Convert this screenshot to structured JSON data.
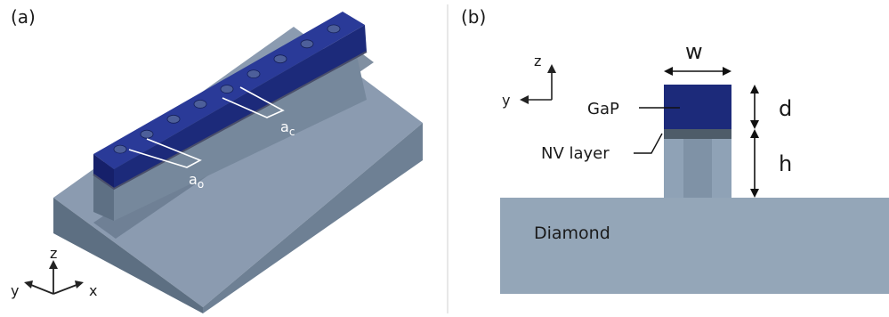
{
  "panel_a": {
    "label": "(a)",
    "hole_labels": {
      "first": "a",
      "first_sub": "o",
      "second": "a",
      "second_sub": "c"
    },
    "axes": {
      "z": "z",
      "y": "y",
      "x": "x"
    }
  },
  "panel_b": {
    "label": "(b)",
    "axes": {
      "z": "z",
      "y": "y"
    },
    "dims": {
      "width": "w",
      "top": "d",
      "lower": "h"
    },
    "layer_labels": {
      "top": "GaP",
      "middle": "NV layer",
      "substrate": "Diamond"
    }
  },
  "colors": {
    "gap_blue": "#1c2a7a",
    "diamond": "#94a6b8",
    "diamond_dark": "#6f8296",
    "diamond_front": "#5d6f82",
    "nv_layer": "#4e5c69",
    "divider": "#d0d0d0"
  }
}
